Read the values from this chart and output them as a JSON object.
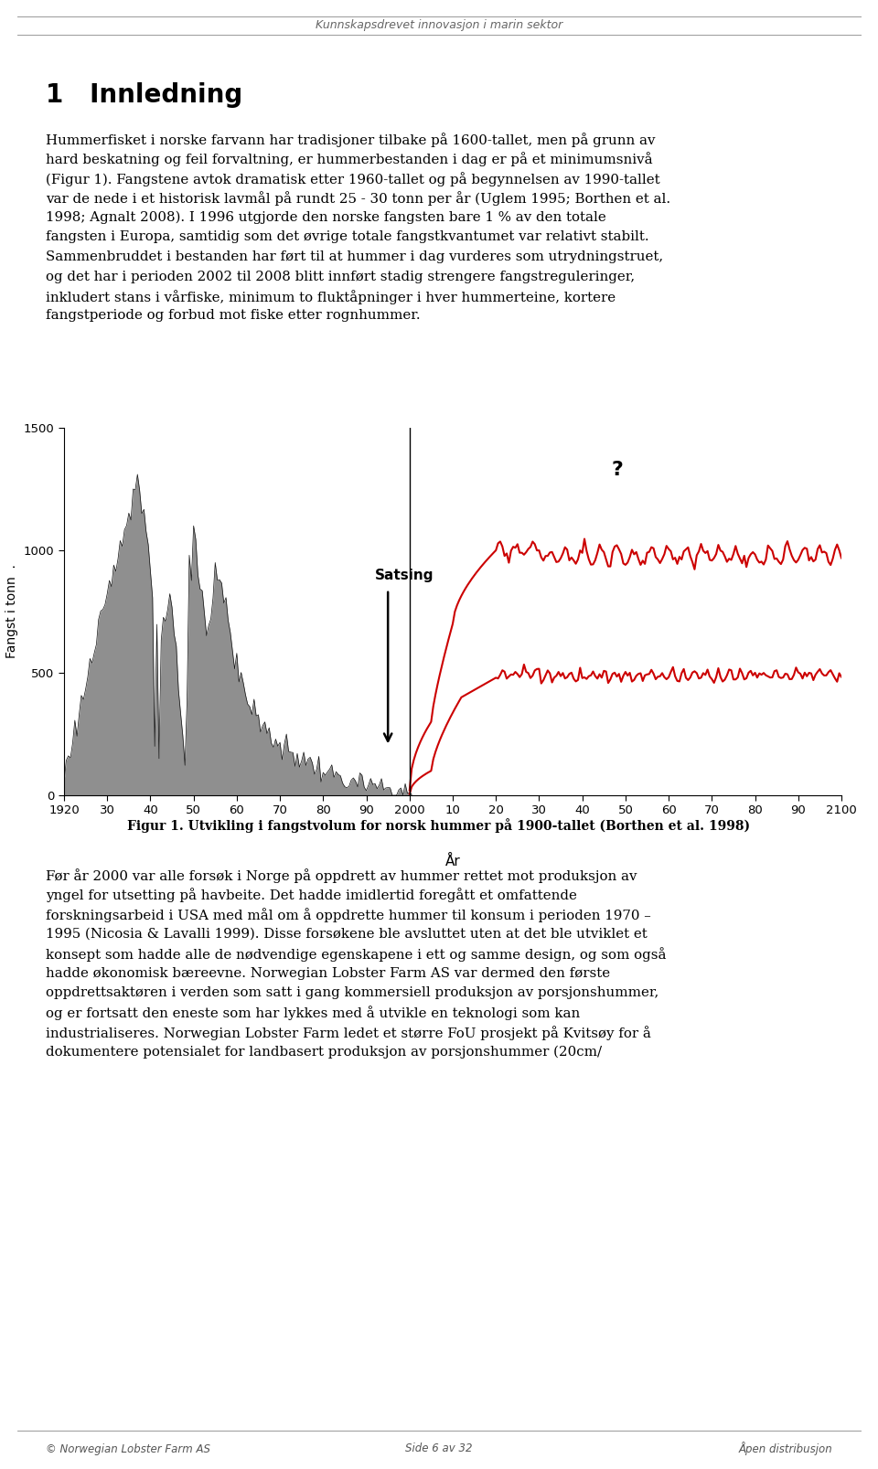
{
  "page_title": "Kunnskapsdrevet innovasjon i marin sektor",
  "heading": "1   Innledning",
  "body1_lines": [
    "Hummerfisket i norske farvann har tradisjoner tilbake på 1600-tallet, men på grunn av",
    "hard beskatning og feil forvaltning, er hummerbestanden i dag er på et minimumsnivå",
    "(Figur 1). Fangstene avtok dramatisk etter 1960-tallet og på begynnelsen av 1990-tallet",
    "var de nede i et historisk lavmål på rundt 25 - 30 tonn per år (Uglem 1995; Borthen et al.",
    "1998; Agnalt 2008). I 1996 utgjorde den norske fangsten bare 1 % av den totale",
    "fangsten i Europa, samtidig som det øvrige totale fangstkvantumet var relativt stabilt.",
    "Sammenbruddet i bestanden har ført til at hummer i dag vurderes som utrydningstruet,",
    "og det har i perioden 2002 til 2008 blitt innført stadig strengere fangstreguleringer,",
    "inkludert stans i vårfiske, minimum to fluktåpninger i hver hummerteine, kortere",
    "fangstperiode og forbud mot fiske etter rognhummer."
  ],
  "fig_caption": "Figur 1. Utvikling i fangstvolum for norsk hummer på 1900-tallet (Borthen et al. 1998)",
  "body2_lines": [
    "Før år 2000 var alle forsøk i Norge på oppdrett av hummer rettet mot produksjon av",
    "yngel for utsetting på havbeite. Det hadde imidlertid foregått et omfattende",
    "forskningsarbeid i USA med mål om å oppdrette hummer til konsum i perioden 1970 –",
    "1995 (Nicosia & Lavalli 1999). Disse forsøkene ble avsluttet uten at det ble utviklet et",
    "konsept som hadde alle de nødvendige egenskapene i ett og samme design, og som også",
    "hadde økonomisk bæreevne. Norwegian Lobster Farm AS var dermed den første",
    "oppdrettsaktøren i verden som satt i gang kommersiell produksjon av porsjonshummer,",
    "og er fortsatt den eneste som har lykkes med å utvikle en teknologi som kan",
    "industrialiseres. Norwegian Lobster Farm ledet et større FoU prosjekt på Kvitsøy for å",
    "dokumentere potensialet for landbasert produksjon av porsjonshummer (20cm/"
  ],
  "footer_left": "© Norwegian Lobster Farm AS",
  "footer_center": "Side 6 av 32",
  "footer_right": "Åpen distribusjon",
  "chart": {
    "ylim": [
      0,
      1500
    ],
    "yticks": [
      0,
      500,
      1000,
      1500
    ],
    "xlabel": "År",
    "ylabel": "Fangst i tonn  .",
    "satsing_label": "Satsing",
    "question_mark": "?",
    "fill_color": "#808080",
    "line_color_red": "#cc0000",
    "separator_color": "#000000",
    "xtick_labels": [
      "1920",
      "30",
      "40",
      "50",
      "60",
      "70",
      "80",
      "90",
      "2000",
      "10",
      "20",
      "30",
      "40",
      "50",
      "60",
      "70",
      "80",
      "90",
      "2100"
    ]
  },
  "background_color": "#ffffff",
  "text_color": "#000000"
}
